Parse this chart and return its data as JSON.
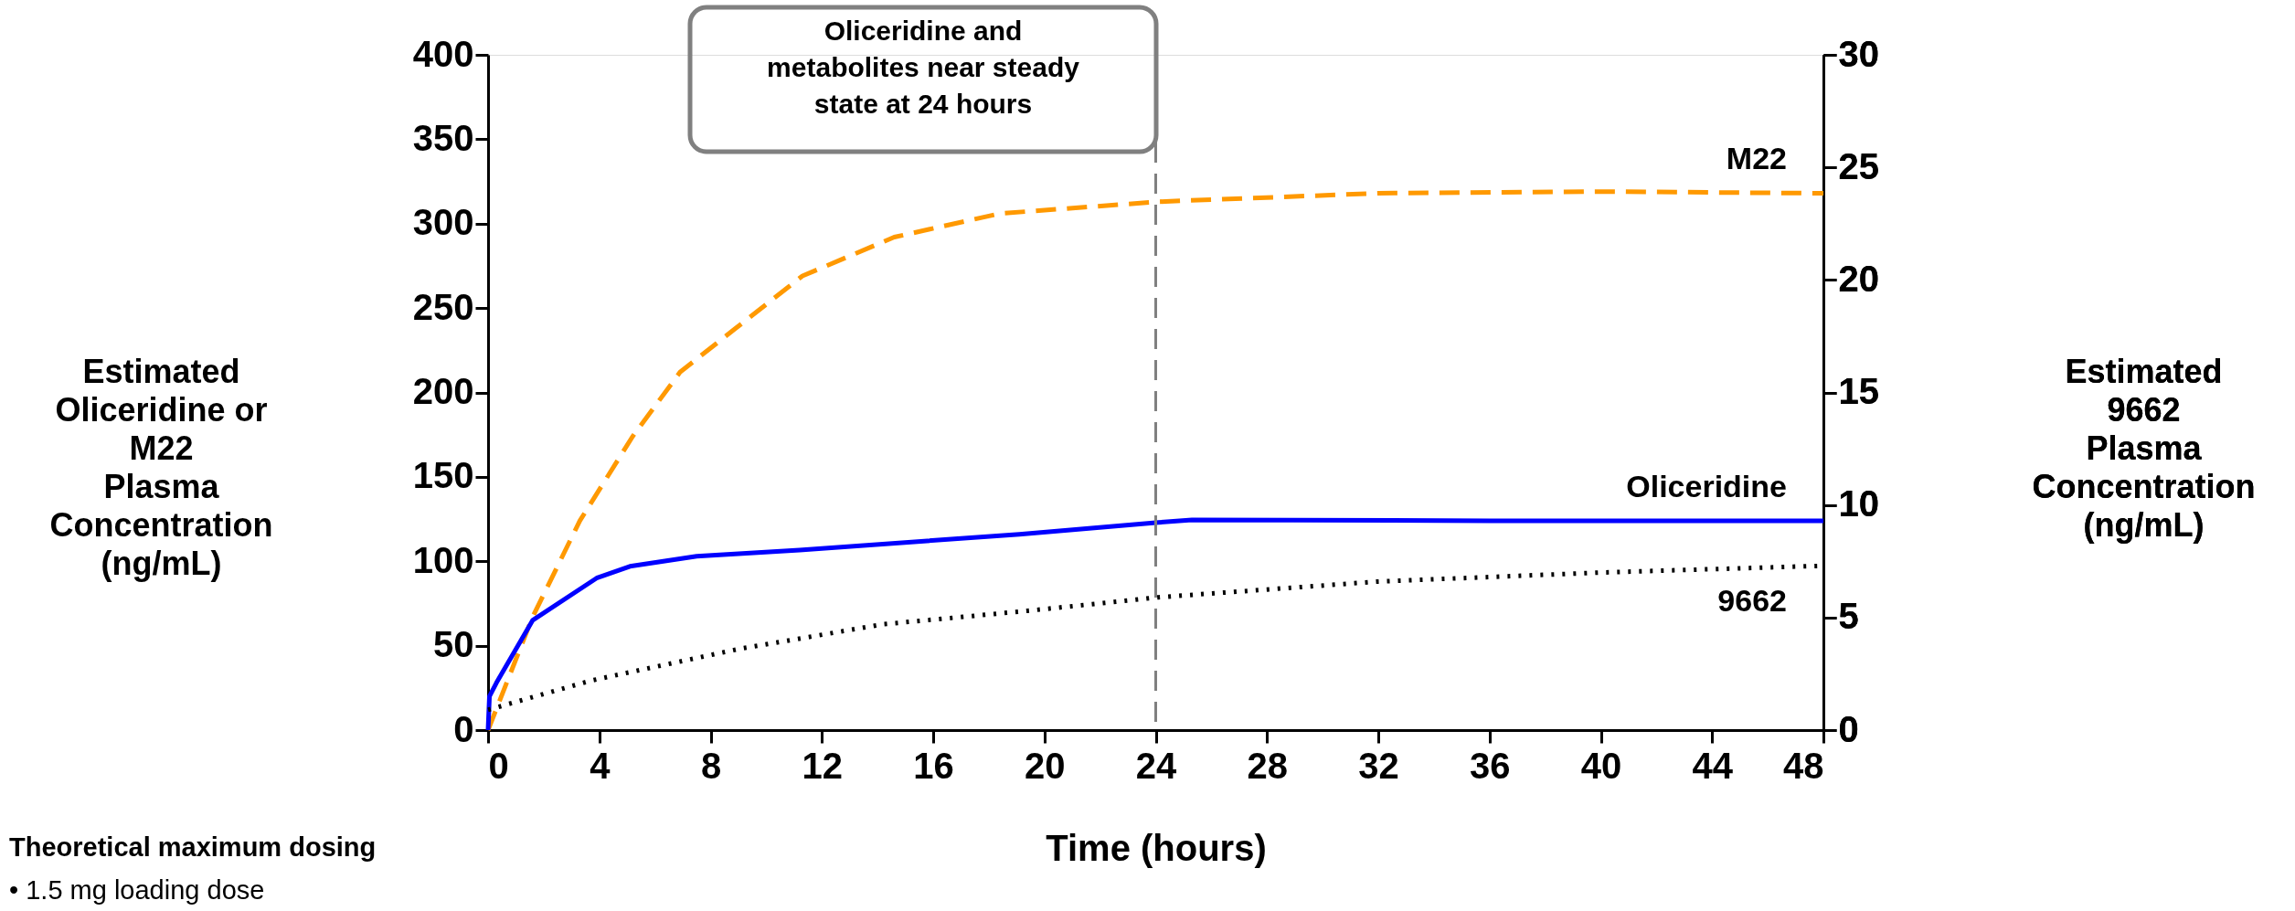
{
  "chart_data": {
    "type": "line",
    "xlabel": "Time (hours)",
    "ylabel": "Estimated\nOliceridine or\nM22\nPlasma\nConcentration\n(ng/mL)",
    "y2label": "Estimated\n9662\nPlasma\nConcentration\n(ng/mL)",
    "xlim": [
      0,
      48
    ],
    "xticks": [
      0,
      4,
      8,
      12,
      16,
      20,
      24,
      28,
      32,
      36,
      40,
      44,
      48
    ],
    "ylim": [
      0,
      400
    ],
    "yticks": [
      0,
      50,
      100,
      150,
      200,
      250,
      300,
      350,
      400
    ],
    "y2lim": [
      0,
      30
    ],
    "y2ticks": [
      0,
      5,
      10,
      15,
      20,
      25,
      30
    ],
    "grid": false,
    "series": [
      {
        "name": "M22",
        "color": "#ff9900",
        "line_style": "dashed",
        "x": [
          0,
          1.6,
          3.3,
          5.2,
          6.9,
          8.9,
          11.3,
          14.6,
          18.4,
          24.1,
          32,
          40,
          48
        ],
        "values": [
          0,
          67,
          124,
          174,
          212,
          238,
          269,
          292,
          306,
          313,
          318,
          319,
          318
        ]
      },
      {
        "name": "Oliceridine",
        "color": "#0000ff",
        "line_style": "solid",
        "x": [
          0,
          0.05,
          0.3,
          1.6,
          3.9,
          5.1,
          7.5,
          11.2,
          19.1,
          24.1,
          25.3,
          36,
          48
        ],
        "values": [
          0,
          20,
          28,
          65,
          90,
          97,
          103,
          106.6,
          116,
          123,
          124.5,
          124,
          124
        ]
      },
      {
        "name": "9662",
        "color": "#000000",
        "line_style": "dotted",
        "axis": "y2",
        "x": [
          0,
          3.7,
          9,
          14.2,
          19.4,
          24.1,
          32,
          40,
          48
        ],
        "values": [
          0.9,
          2.2,
          3.6,
          4.7,
          5.3,
          5.9,
          6.6,
          7.0,
          7.3
        ]
      }
    ],
    "ref_lines": [
      {
        "axis": "x",
        "value": 24,
        "label": null,
        "color": "#808080",
        "line_style": "dashed"
      }
    ],
    "annotations": [
      "Oliceridine and\nmetabolites near steady\nstate at 24 hours",
      "Theoretical maximum dosing",
      "•    1.5 mg loading dose"
    ]
  }
}
